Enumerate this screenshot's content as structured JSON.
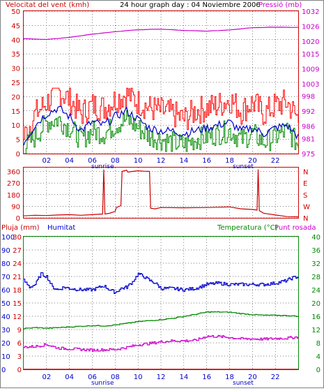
{
  "header": {
    "wind_label": "Velocitat del vent (kmh)",
    "title": "24 hour graph day : 04 Noviembre 2006",
    "pressure_label": "Pressió (mb)"
  },
  "bottom_header": {
    "rain_label": "Pluja (mm)",
    "humidity_label": "Humitat",
    "temperature_label": "Temperatura (°C)",
    "dewpoint_label": "Punt rosada"
  },
  "hour_ticks": [
    "02",
    "04",
    "06",
    "08",
    "10",
    "12",
    "14",
    "16",
    "18",
    "20",
    "22"
  ],
  "sunrise_label": "sunrise",
  "sunset_label": "sunset",
  "colors": {
    "frame_red": "#cc0000",
    "wind_gust": "#ff0000",
    "wind_avg": "#008800",
    "wind_mean": "#0000cc",
    "pressure": "#cc00cc",
    "direction": "#cc0000",
    "humidity": "#0000cc",
    "temperature": "#008800",
    "dewpoint": "#cc00cc",
    "rain": "#cc0000",
    "grid": "#000000"
  },
  "chart_data": [
    {
      "type": "line",
      "title": "24 hour graph day : 04 Noviembre 2006",
      "x_unit": "hour",
      "xlim": [
        0,
        24
      ],
      "ylabel": "Velocitat del vent (kmh)",
      "ylim": [
        0,
        50
      ],
      "yticks": [
        0,
        5,
        10,
        15,
        20,
        25,
        30,
        35,
        40,
        45,
        50
      ],
      "y2label": "Pressió (mb)",
      "y2lim": [
        975,
        1032
      ],
      "y2ticks": [
        975,
        981,
        986,
        992,
        998,
        1003,
        1009,
        1015,
        1020,
        1026,
        1032
      ],
      "grid": true,
      "series": [
        {
          "name": "Pressió (mb)",
          "axis": "y2",
          "x": [
            0,
            2,
            4,
            6,
            8,
            10,
            12,
            14,
            16,
            18,
            20,
            22,
            24
          ],
          "values": [
            1021.0,
            1020.7,
            1021.5,
            1022.8,
            1023.8,
            1024.6,
            1024.8,
            1024.3,
            1024.0,
            1024.5,
            1025.4,
            1025.6,
            1025.5
          ]
        },
        {
          "name": "gust",
          "axis": "y",
          "x": [
            0,
            1,
            2,
            3,
            4,
            5,
            6,
            7,
            8,
            9,
            10,
            11,
            12,
            13,
            14,
            15,
            16,
            17,
            18,
            19,
            20,
            21,
            22,
            23,
            24
          ],
          "values": [
            6,
            14,
            18,
            22,
            19,
            14,
            17,
            16,
            19,
            21,
            18,
            16,
            15,
            14,
            12,
            15,
            16,
            17,
            19,
            15,
            18,
            14,
            17,
            18,
            12
          ]
        },
        {
          "name": "average",
          "axis": "y",
          "x": [
            0,
            1,
            2,
            3,
            4,
            5,
            6,
            7,
            8,
            9,
            10,
            11,
            12,
            13,
            14,
            15,
            16,
            17,
            18,
            19,
            20,
            21,
            22,
            23,
            24
          ],
          "values": [
            2,
            6,
            11,
            12,
            9,
            5,
            8,
            7,
            10,
            12,
            9,
            6,
            5,
            4,
            3,
            5,
            6,
            7,
            8,
            5,
            7,
            4,
            6,
            8,
            3
          ]
        },
        {
          "name": "mean",
          "axis": "y",
          "x": [
            0,
            1,
            2,
            3,
            4,
            5,
            6,
            7,
            8,
            9,
            10,
            11,
            12,
            13,
            14,
            15,
            16,
            17,
            18,
            19,
            20,
            21,
            22,
            23,
            24
          ],
          "values": [
            4,
            10,
            14,
            16,
            13,
            8,
            11,
            10,
            13,
            15,
            12,
            9,
            8,
            8,
            7,
            8,
            9,
            10,
            11,
            8,
            9,
            7,
            9,
            10,
            6
          ]
        }
      ]
    },
    {
      "type": "line",
      "x_unit": "hour",
      "xlim": [
        0,
        24
      ],
      "ylim": [
        0,
        390
      ],
      "yticks": [
        0,
        90,
        180,
        270,
        360
      ],
      "y2ticks": [
        "N",
        "W",
        "S",
        "E",
        "N"
      ],
      "grid": true,
      "series": [
        {
          "name": "direction",
          "x": [
            0,
            1,
            2,
            3,
            4,
            5,
            6,
            6.9,
            7.0,
            7.1,
            7.5,
            8.0,
            8.1,
            8.5,
            8.6,
            9.0,
            9.1,
            9.5,
            10.0,
            10.5,
            11.0,
            11.1,
            11.5,
            12,
            14,
            16,
            18,
            19,
            20,
            20.4,
            20.5,
            20.6,
            21,
            22,
            23,
            24
          ],
          "values": [
            15,
            20,
            18,
            22,
            25,
            20,
            25,
            30,
            375,
            30,
            35,
            50,
            80,
            95,
            360,
            370,
            355,
            360,
            365,
            362,
            360,
            75,
            70,
            80,
            78,
            80,
            85,
            70,
            65,
            60,
            375,
            55,
            35,
            22,
            10,
            8
          ]
        }
      ]
    },
    {
      "type": "line",
      "x_unit": "hour",
      "xlim": [
        0,
        24
      ],
      "ylabel": "Humitat",
      "ylim": [
        0,
        100
      ],
      "yticks": [
        0,
        10,
        20,
        30,
        40,
        50,
        60,
        70,
        80,
        90,
        100
      ],
      "y_inner_label": "Pluja (mm)",
      "y_inner_ticks": [
        0,
        3,
        6,
        9,
        12,
        15,
        18,
        21,
        24,
        27,
        30
      ],
      "y2label": "Temperatura (°C) Punt rosada",
      "y2lim": [
        0,
        40
      ],
      "y2ticks": [
        0,
        4,
        8,
        12,
        16,
        20,
        24,
        28,
        32,
        36,
        40
      ],
      "grid": true,
      "series": [
        {
          "name": "Humitat",
          "axis": "y",
          "x": [
            0,
            0.5,
            1.0,
            1.5,
            2.0,
            2.5,
            3.0,
            3.5,
            4.0,
            5.0,
            6.0,
            7.0,
            7.5,
            8.0,
            8.5,
            9.0,
            9.5,
            10.0,
            10.5,
            11.0,
            11.5,
            12,
            13,
            14,
            15,
            16,
            17,
            18,
            19,
            20,
            21,
            22,
            23,
            23.5,
            24
          ],
          "values": [
            67,
            62,
            64,
            72,
            70,
            62,
            60,
            62,
            61,
            60,
            60,
            63,
            60,
            58,
            61,
            62,
            66,
            72,
            70,
            67,
            65,
            61,
            61,
            60,
            61,
            64,
            65,
            64,
            64,
            64,
            64,
            65,
            67,
            69,
            70
          ]
        },
        {
          "name": "Temperatura (°C)",
          "axis": "y2",
          "x": [
            0,
            1,
            2,
            3,
            4,
            5,
            6,
            7,
            8,
            9,
            10,
            11,
            12,
            13,
            14,
            15,
            16,
            17,
            18,
            19,
            20,
            21,
            22,
            23,
            24
          ],
          "values": [
            12.3,
            12.6,
            12.4,
            12.6,
            12.8,
            13.0,
            13.2,
            13.1,
            13.4,
            13.9,
            14.4,
            14.7,
            15.0,
            15.4,
            16.0,
            16.6,
            17.3,
            17.3,
            17.2,
            16.8,
            16.5,
            16.3,
            16.3,
            16.2,
            16.0
          ]
        },
        {
          "name": "Punt rosada",
          "axis": "y2",
          "x": [
            0,
            1,
            2,
            3,
            4,
            5,
            6,
            7,
            8,
            9,
            10,
            11,
            12,
            13,
            14,
            15,
            16,
            17,
            18,
            19,
            20,
            21,
            22,
            23,
            24
          ],
          "values": [
            6.7,
            6.9,
            7.5,
            6.4,
            6.2,
            6.0,
            5.8,
            5.9,
            6.0,
            6.6,
            7.4,
            7.8,
            8.3,
            8.6,
            8.6,
            8.7,
            10.0,
            9.9,
            9.6,
            9.2,
            9.2,
            9.1,
            9.3,
            9.4,
            9.8
          ]
        },
        {
          "name": "Pluja (mm)",
          "axis": "y",
          "x": [
            0,
            24
          ],
          "values": [
            0,
            0
          ]
        }
      ]
    }
  ]
}
